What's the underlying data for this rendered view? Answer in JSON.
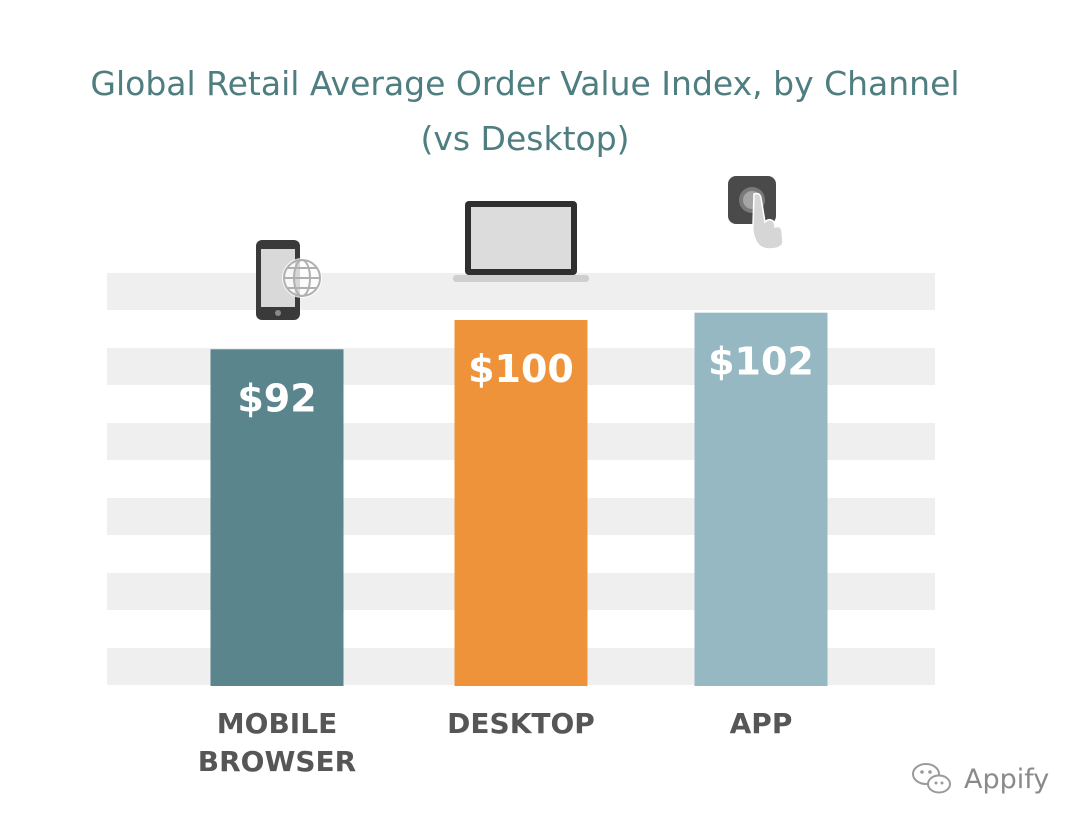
{
  "chart_data": {
    "type": "bar",
    "title": "Global Retail Average Order Value Index, by Channel",
    "subtitle": "(vs Desktop)",
    "categories": [
      "MOBILE BROWSER",
      "DESKTOP",
      "APP"
    ],
    "category_lines": [
      [
        "MOBILE",
        "BROWSER"
      ],
      [
        "DESKTOP"
      ],
      [
        "APP"
      ]
    ],
    "values": [
      92,
      100,
      102
    ],
    "value_labels": [
      "$92",
      "$100",
      "$102"
    ],
    "icons": [
      "smartphone-globe-icon",
      "laptop-icon",
      "app-tap-icon"
    ],
    "colors": [
      "#5b858c",
      "#ef933a",
      "#96b8c2"
    ],
    "band_color": "#efefef",
    "ylim": [
      0,
      110
    ],
    "grid": "horizontal-bands",
    "xlabel": "",
    "ylabel": ""
  },
  "watermark": {
    "text": "Appify",
    "icon": "wechat-icon"
  }
}
